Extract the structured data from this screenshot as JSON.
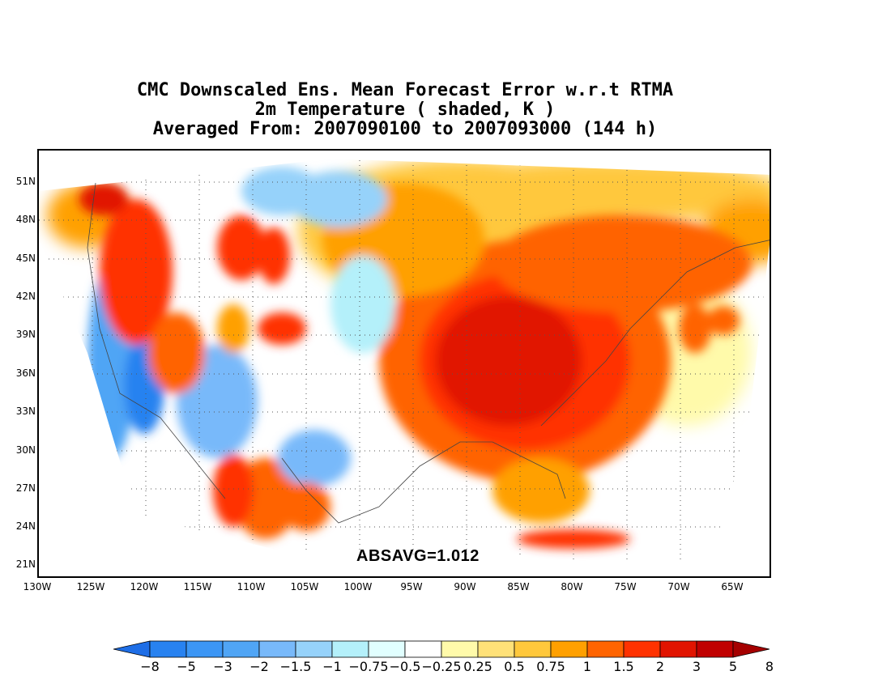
{
  "title": {
    "line1": "CMC Downscaled Ens. Mean Forecast Error w.r.t RTMA",
    "line2": "2m Temperature ( shaded, K )",
    "line3": "Averaged From: 2007090100 to 2007093000 (144 h)"
  },
  "map": {
    "lat_labels": [
      "51N",
      "48N",
      "45N",
      "42N",
      "39N",
      "36N",
      "33N",
      "30N",
      "27N",
      "24N",
      "21N"
    ],
    "lon_labels": [
      "130W",
      "125W",
      "120W",
      "115W",
      "110W",
      "105W",
      "100W",
      "95W",
      "90W",
      "85W",
      "80W",
      "75W",
      "70W",
      "65W"
    ],
    "absavg": "ABSAVG=1.012"
  },
  "colorbar": {
    "colors": [
      "#1e6ee6",
      "#2882f0",
      "#3c96f5",
      "#50a5f5",
      "#78b9fa",
      "#96d2fa",
      "#b4f0fa",
      "#e1ffff",
      "#ffffff",
      "#fffaaa",
      "#ffe178",
      "#ffc83c",
      "#ffa000",
      "#ff6400",
      "#ff3200",
      "#e11400",
      "#c00000",
      "#a50000"
    ],
    "labels": [
      "−8",
      "−5",
      "−3",
      "−2",
      "−1.5",
      "−1",
      "−0.75",
      "−0.5",
      "−0.25",
      "0.25",
      "0.5",
      "0.75",
      "1",
      "1.5",
      "2",
      "3",
      "5",
      "8"
    ]
  }
}
